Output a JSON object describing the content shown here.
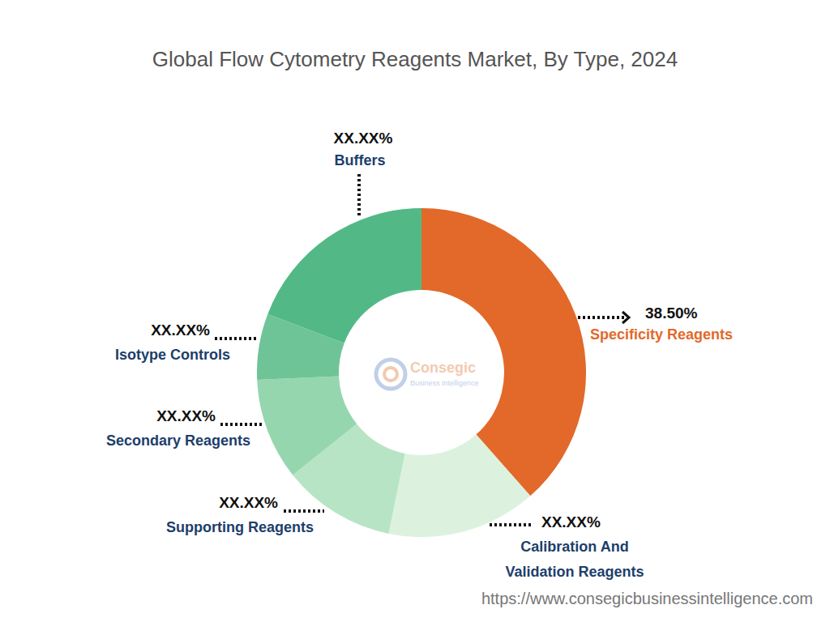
{
  "chart_data": {
    "type": "donut",
    "title": "Global Flow Cytometry Reagents Market, By Type, 2024",
    "categories": [
      "Specificity Reagents",
      "Calibration And Validation Reagents",
      "Supporting Reagents",
      "Secondary Reagents",
      "Isotype Controls",
      "Buffers"
    ],
    "values": [
      38.5,
      14.7,
      11.1,
      10.0,
      6.5,
      19.2
    ],
    "value_labels": [
      "38.50%",
      "XX.XX%",
      "XX.XX%",
      "XX.XX%",
      "XX.XX%",
      "XX.XX%"
    ],
    "colors": [
      "#e2692a",
      "#dcf2df",
      "#b8e4c6",
      "#96d6ae",
      "#6fc497",
      "#52b986"
    ],
    "data_labels": true,
    "logo": {
      "title": "Consegic",
      "subtitle": "Business Intelligence"
    },
    "source": "https://www.consegicbusinessintelligence.com"
  }
}
